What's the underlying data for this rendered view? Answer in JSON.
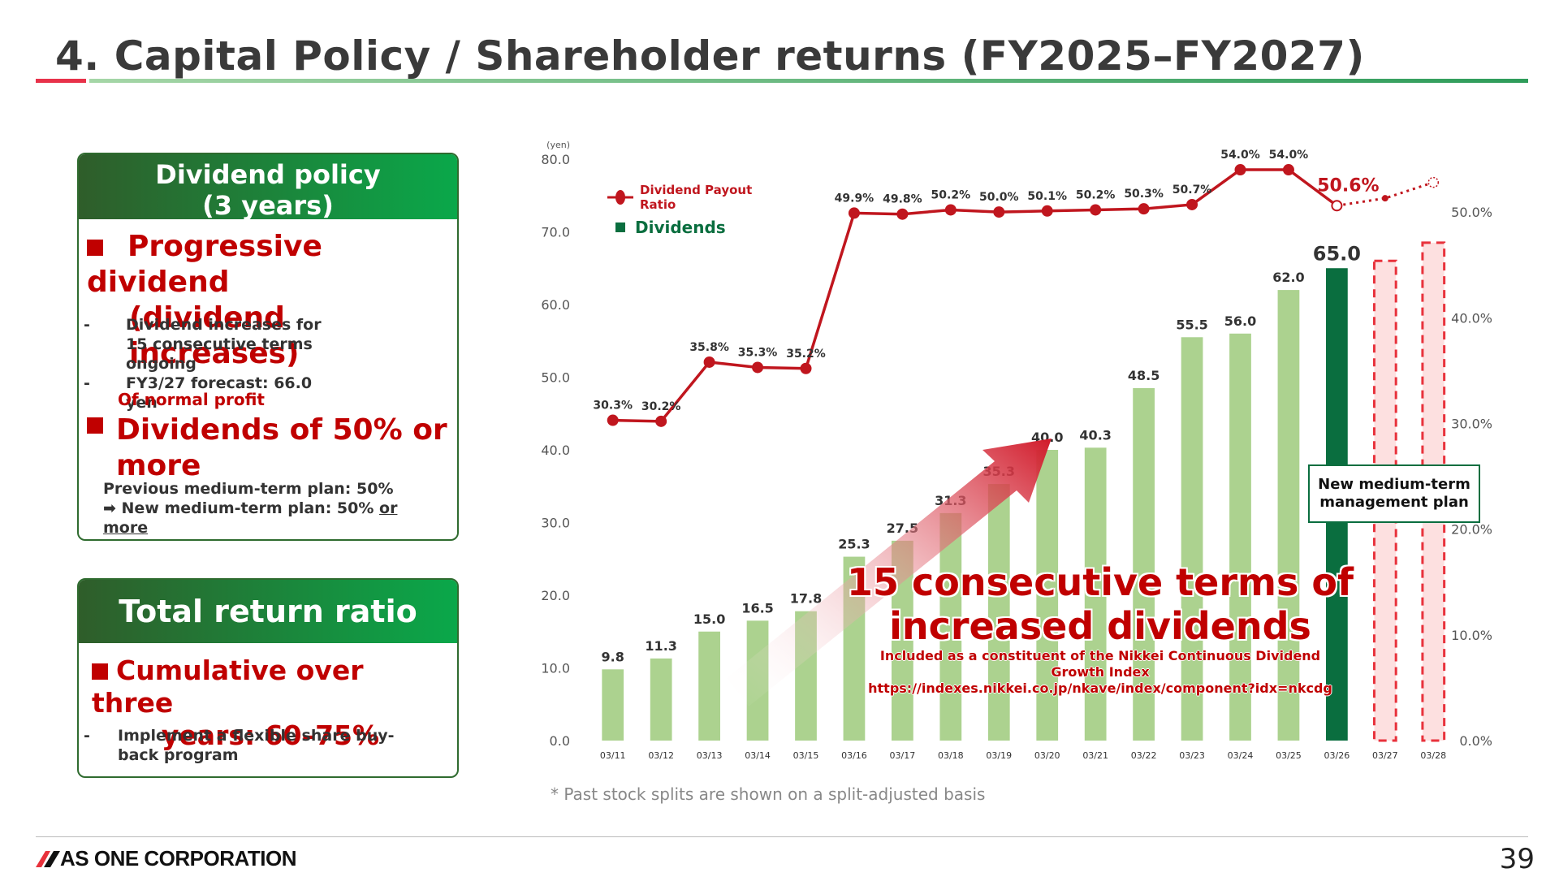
{
  "header": {
    "title": "4. Capital Policy / Shareholder returns (FY2025–FY2027)"
  },
  "policy_box": {
    "heading": "Dividend policy\n(3 years)",
    "heading_l1": "Dividend policy",
    "heading_l2": "(3 years)",
    "item1_l1": "Progressive dividend",
    "item1_l2": "(dividend increases)",
    "item1_bullets": [
      "Dividend increases for 15 consecutive terms ongoing",
      "FY3/27 forecast: 66.0 yen"
    ],
    "item2_sub": "Of normal profit",
    "item2_l1": "Dividends of 50% or",
    "item2_l2": "more",
    "item2_foot_l1": "Previous medium-term plan: 50%",
    "item2_foot_l2_prefix": "➡ New medium-term plan: 50% ",
    "item2_foot_l2_underlined": "or",
    "item2_foot_l3_underlined": "more"
  },
  "total_box": {
    "heading": "Total return ratio",
    "item_l1": "Cumulative over three",
    "item_l2": "years: 60–75%",
    "bullet": "Implement a flexible share buy-back program"
  },
  "chart_data": {
    "type": "bar",
    "categories": [
      "03/11",
      "03/12",
      "03/13",
      "03/14",
      "03/15",
      "03/16",
      "03/17",
      "03/18",
      "03/19",
      "03/20",
      "03/21",
      "03/22",
      "03/23",
      "03/24",
      "03/25",
      "03/26",
      "03/27",
      "03/28"
    ],
    "series": [
      {
        "name": "Dividends",
        "type": "bar",
        "axis": "left",
        "values": [
          9.8,
          11.3,
          15.0,
          16.5,
          17.8,
          25.3,
          27.5,
          31.3,
          35.3,
          40.0,
          40.3,
          48.5,
          55.5,
          56.0,
          62.0,
          65.0,
          null,
          null
        ],
        "labels": [
          "9.8",
          "11.3",
          "15.0",
          "16.5",
          "17.8",
          "25.3",
          "27.5",
          "31.3",
          "35.3",
          "40.0",
          "40.3",
          "48.5",
          "55.5",
          "56.0",
          "62.0",
          "65.0",
          "",
          ""
        ]
      },
      {
        "name": "Dividend Payout Ratio",
        "type": "line",
        "axis": "right",
        "values": [
          30.3,
          30.2,
          35.8,
          35.3,
          35.2,
          49.9,
          49.8,
          50.2,
          50.0,
          50.1,
          50.2,
          50.3,
          50.7,
          54.0,
          54.0,
          50.6,
          null,
          null
        ],
        "labels": [
          "30.3%",
          "30.2%",
          "35.8%",
          "35.3%",
          "35.2%",
          "49.9%",
          "49.8%",
          "50.2%",
          "50.0%",
          "50.1%",
          "50.2%",
          "50.3%",
          "50.7%",
          "54.0%",
          "54.0%",
          "50.6%",
          "",
          ""
        ]
      }
    ],
    "forecast": {
      "bar_categories": [
        "03/27",
        "03/28"
      ],
      "line_note": "dotted line continues beyond 03/26"
    },
    "left_axis": {
      "unit_label": "(yen)",
      "ticks": [
        "0.0",
        "10.0",
        "20.0",
        "30.0",
        "40.0",
        "50.0",
        "60.0",
        "70.0",
        "80.0"
      ],
      "ylim": [
        0,
        80
      ]
    },
    "right_axis": {
      "ticks": [
        "0.0%",
        "10.0%",
        "20.0%",
        "30.0%",
        "40.0%",
        "50.0%"
      ],
      "ylim": [
        0,
        55
      ]
    },
    "legend": {
      "placement": "top-left",
      "line_label_l1": "Dividend Payout",
      "line_label_l2": "Ratio",
      "bar_label": "Dividends"
    },
    "colors": {
      "bar": "#acd28f",
      "highlight_bar": "#0a6e3f",
      "line": "#c0161e",
      "forecast_fill": "#fde0e0",
      "forecast_border": "#e8323c",
      "grid": "#e0e0e0"
    }
  },
  "annotations": {
    "mtp_box_l1": "New medium-term",
    "mtp_box_l2": "management plan",
    "callout_l1": "15 consecutive terms of",
    "callout_l2": "increased dividends",
    "callout_small_l1": "Included as a constituent of the Nikkei Continuous Dividend",
    "callout_small_l2": "Growth Index",
    "callout_small_l3": "https://indexes.nikkei.co.jp/nkave/index/component?idx=nkcdg"
  },
  "footnote": "* Past stock splits are shown on a split-adjusted basis",
  "footer": {
    "company": "AS ONE CORPORATION",
    "page": "39"
  }
}
